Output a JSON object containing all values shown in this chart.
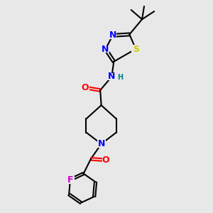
{
  "bg_color": "#e8e8e8",
  "bond_color": "#000000",
  "bond_width": 1.5,
  "atom_colors": {
    "N": "#0000ff",
    "O": "#ff0000",
    "S": "#cccc00",
    "F": "#cc00cc",
    "H_label": "#008080",
    "C": "#000000"
  },
  "font_size_atom": 9,
  "font_size_small": 7
}
